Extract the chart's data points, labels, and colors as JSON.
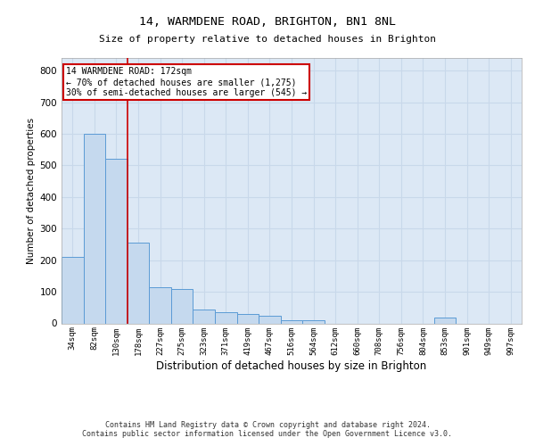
{
  "title_line1": "14, WARMDENE ROAD, BRIGHTON, BN1 8NL",
  "title_line2": "Size of property relative to detached houses in Brighton",
  "xlabel": "Distribution of detached houses by size in Brighton",
  "ylabel": "Number of detached properties",
  "footer_line1": "Contains HM Land Registry data © Crown copyright and database right 2024.",
  "footer_line2": "Contains public sector information licensed under the Open Government Licence v3.0.",
  "bin_labels": [
    "34sqm",
    "82sqm",
    "130sqm",
    "178sqm",
    "227sqm",
    "275sqm",
    "323sqm",
    "371sqm",
    "419sqm",
    "467sqm",
    "516sqm",
    "564sqm",
    "612sqm",
    "660sqm",
    "708sqm",
    "756sqm",
    "804sqm",
    "853sqm",
    "901sqm",
    "949sqm",
    "997sqm"
  ],
  "bar_heights": [
    210,
    600,
    520,
    255,
    115,
    110,
    45,
    35,
    30,
    25,
    10,
    10,
    0,
    0,
    0,
    0,
    0,
    18,
    0,
    0,
    0
  ],
  "bar_color": "#c5d9ee",
  "bar_edge_color": "#5b9bd5",
  "property_line_x": 3.0,
  "property_line_color": "#cc0000",
  "annotation_text": "14 WARMDENE ROAD: 172sqm\n← 70% of detached houses are smaller (1,275)\n30% of semi-detached houses are larger (545) →",
  "annotation_box_color": "#cc0000",
  "ylim": [
    0,
    840
  ],
  "yticks": [
    0,
    100,
    200,
    300,
    400,
    500,
    600,
    700,
    800
  ],
  "grid_color": "#c8d8ea",
  "background_color": "#dce8f5"
}
